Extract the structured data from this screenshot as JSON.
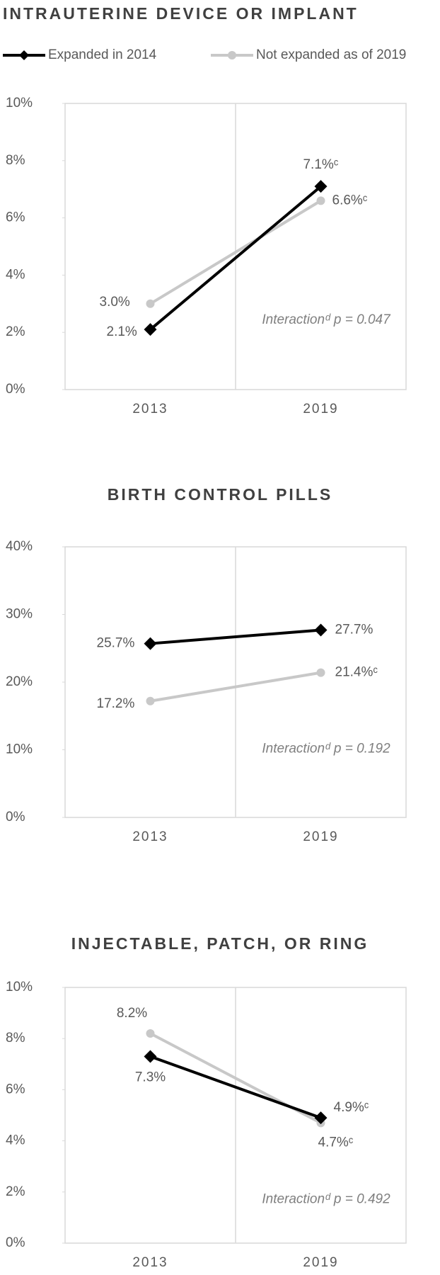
{
  "chart_data": [
    {
      "type": "line",
      "title": "INTRAUTERINE DEVICE OR IMPLANT",
      "categories": [
        "2013",
        "2019"
      ],
      "ylim": [
        0,
        10
      ],
      "yticks": [
        {
          "value": 0,
          "label": "0%"
        },
        {
          "value": 2,
          "label": "2%"
        },
        {
          "value": 4,
          "label": "4%"
        },
        {
          "value": 6,
          "label": "6%"
        },
        {
          "value": 8,
          "label": "8%"
        },
        {
          "value": 10,
          "label": "10%"
        }
      ],
      "series": [
        {
          "name": "Expanded in 2014",
          "color": "#000000",
          "marker": "diamond",
          "values": [
            2.1,
            7.1
          ],
          "value_labels": [
            "2.1%",
            "7.1%ᶜ"
          ]
        },
        {
          "name": "Not expanded as of 2019",
          "color": "#c8c8c8",
          "marker": "circle",
          "values": [
            3.0,
            6.6
          ],
          "value_labels": [
            "3.0%",
            "6.6%ᶜ"
          ]
        }
      ],
      "annotation": "Interactionᵈ p = 0.047"
    },
    {
      "type": "line",
      "title": "BIRTH CONTROL PILLS",
      "categories": [
        "2013",
        "2019"
      ],
      "ylim": [
        0,
        40
      ],
      "yticks": [
        {
          "value": 0,
          "label": "0%"
        },
        {
          "value": 10,
          "label": "10%"
        },
        {
          "value": 20,
          "label": "20%"
        },
        {
          "value": 30,
          "label": "30%"
        },
        {
          "value": 40,
          "label": "40%"
        }
      ],
      "series": [
        {
          "color": "#000000",
          "marker": "diamond",
          "values": [
            25.7,
            27.7
          ],
          "value_labels": [
            "25.7%",
            "27.7%"
          ]
        },
        {
          "color": "#c8c8c8",
          "marker": "circle",
          "values": [
            17.2,
            21.4
          ],
          "value_labels": [
            "17.2%",
            "21.4%ᶜ"
          ]
        }
      ],
      "annotation": "Interactionᵈ p = 0.192"
    },
    {
      "type": "line",
      "title": "INJECTABLE, PATCH, OR RING",
      "categories": [
        "2013",
        "2019"
      ],
      "ylim": [
        0,
        10
      ],
      "yticks": [
        {
          "value": 0,
          "label": "0%"
        },
        {
          "value": 2,
          "label": "2%"
        },
        {
          "value": 4,
          "label": "4%"
        },
        {
          "value": 6,
          "label": "6%"
        },
        {
          "value": 8,
          "label": "8%"
        },
        {
          "value": 10,
          "label": "10%"
        }
      ],
      "series": [
        {
          "color": "#000000",
          "marker": "diamond",
          "values": [
            7.3,
            4.9
          ],
          "value_labels": [
            "7.3%",
            "4.9%ᶜ"
          ]
        },
        {
          "color": "#c8c8c8",
          "marker": "circle",
          "values": [
            8.2,
            4.7
          ],
          "value_labels": [
            "8.2%",
            "4.7%ᶜ"
          ]
        }
      ],
      "annotation": "Interactionᵈ p = 0.492"
    }
  ]
}
